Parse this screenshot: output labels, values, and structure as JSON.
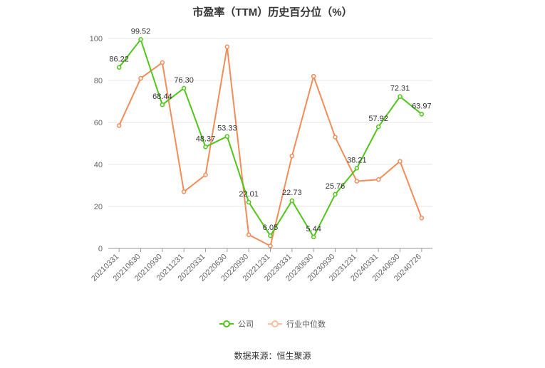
{
  "title": "市盈率（TTM）历史百分位（%）",
  "source": "数据来源：恒生聚源",
  "chart_data": {
    "type": "line",
    "categories": [
      "20210331",
      "20210630",
      "20210930",
      "20211231",
      "20220331",
      "20220630",
      "20220930",
      "20221231",
      "20230331",
      "20230630",
      "20230930",
      "20231231",
      "20240331",
      "20240630",
      "20240726"
    ],
    "ylim": [
      0,
      100
    ],
    "yticks": [
      0,
      20,
      40,
      60,
      80,
      100
    ],
    "grid": true,
    "legend_position": "bottom",
    "series": [
      {
        "name": "公司",
        "color": "#52c41a",
        "values": [
          86.22,
          99.52,
          68.44,
          76.3,
          48.37,
          53.33,
          22.01,
          6.05,
          22.73,
          5.44,
          25.76,
          38.21,
          57.92,
          72.31,
          63.97
        ],
        "labels": [
          "86.22",
          "99.52",
          "68.44",
          "76.30",
          "48.37",
          "53.33",
          "22.01",
          "6.05",
          "22.73",
          "5.44",
          "25.76",
          "38.21",
          "57.92",
          "72.31",
          "63.97"
        ]
      },
      {
        "name": "行业中位数",
        "color": "#f28c5a",
        "values": [
          58.5,
          81.0,
          88.5,
          27.0,
          35.0,
          96.0,
          6.5,
          1.2,
          44.0,
          82.0,
          53.0,
          32.0,
          32.8,
          41.5,
          14.5
        ]
      }
    ]
  }
}
